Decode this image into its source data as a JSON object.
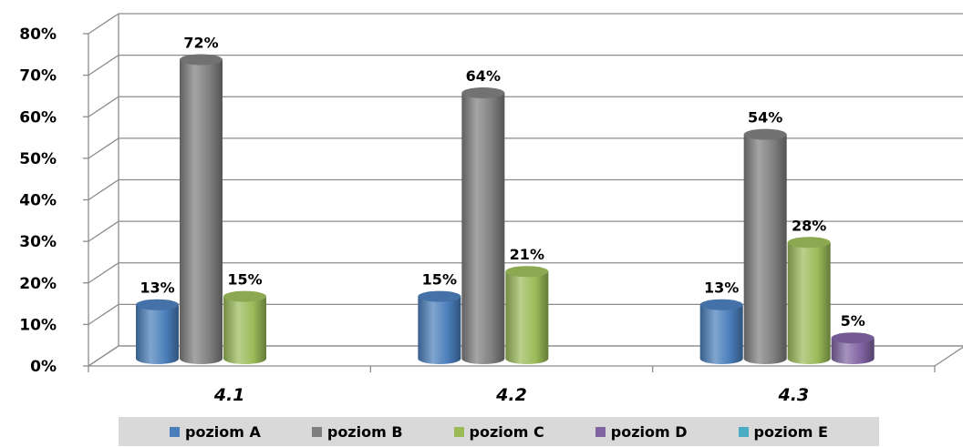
{
  "chart_data": {
    "type": "bar",
    "categories": [
      "4.1",
      "4.2",
      "4.3"
    ],
    "series": [
      {
        "name": "poziom A",
        "color": "#4a7ebb",
        "values": [
          13,
          15,
          13
        ]
      },
      {
        "name": "poziom B",
        "color": "#7f7f7f",
        "values": [
          72,
          64,
          54
        ]
      },
      {
        "name": "poziom C",
        "color": "#9bbb59",
        "values": [
          15,
          21,
          28
        ]
      },
      {
        "name": "poziom D",
        "color": "#8064a2",
        "values": [
          null,
          null,
          5
        ]
      },
      {
        "name": "poziom E",
        "color": "#4bacc6",
        "values": [
          null,
          null,
          null
        ]
      }
    ],
    "data_labels": [
      [
        "13%",
        "15%",
        "13%"
      ],
      [
        "72%",
        "64%",
        "54%"
      ],
      [
        "15%",
        "21%",
        "28%"
      ],
      [
        null,
        null,
        "5%"
      ],
      [
        null,
        null,
        null
      ]
    ],
    "y_ticks": [
      "0%",
      "10%",
      "20%",
      "30%",
      "40%",
      "50%",
      "60%",
      "70%",
      "80%"
    ],
    "ylim": [
      0,
      80
    ],
    "grid": true,
    "legend_position": "bottom",
    "style": "3d-cylinder"
  }
}
